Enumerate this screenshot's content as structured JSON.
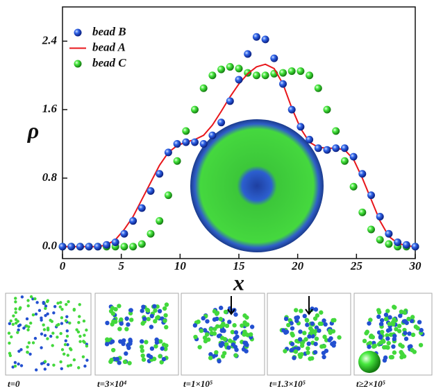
{
  "chart_data": {
    "type": "scatter",
    "x": [
      0,
      0.75,
      1.5,
      2.25,
      3,
      3.75,
      4.5,
      5.25,
      6,
      6.75,
      7.5,
      8.25,
      9,
      9.75,
      10.5,
      11.25,
      12,
      12.75,
      13.5,
      14.25,
      15,
      15.75,
      16.5,
      17.25,
      18,
      18.75,
      19.5,
      20.25,
      21,
      21.75,
      22.5,
      23.25,
      24,
      24.75,
      25.5,
      26.25,
      27,
      27.75,
      28.5,
      29.25,
      30
    ],
    "series": [
      {
        "name": "bead B",
        "color": "#1f4fd6",
        "style": "markers",
        "values": [
          0,
          0,
          0,
          0,
          0,
          0.02,
          0.05,
          0.15,
          0.3,
          0.45,
          0.65,
          0.85,
          1.1,
          1.2,
          1.22,
          1.22,
          1.2,
          1.3,
          1.45,
          1.7,
          1.95,
          2.25,
          2.45,
          2.42,
          2.2,
          1.9,
          1.6,
          1.4,
          1.25,
          1.15,
          1.13,
          1.15,
          1.15,
          1.05,
          0.85,
          0.6,
          0.35,
          0.15,
          0.05,
          0.02,
          0
        ]
      },
      {
        "name": "bead A",
        "color": "#e8161b",
        "style": "line",
        "values": [
          0,
          0,
          0,
          0,
          0,
          0.02,
          0.08,
          0.2,
          0.35,
          0.55,
          0.75,
          0.95,
          1.1,
          1.18,
          1.22,
          1.25,
          1.3,
          1.42,
          1.58,
          1.75,
          1.9,
          2.02,
          2.1,
          2.13,
          2.08,
          1.9,
          1.62,
          1.38,
          1.22,
          1.16,
          1.15,
          1.15,
          1.13,
          1.02,
          0.8,
          0.55,
          0.3,
          0.12,
          0.04,
          0.01,
          0
        ]
      },
      {
        "name": "bead C",
        "color": "#3fe23a",
        "style": "markers",
        "values": [
          0,
          0,
          0,
          0,
          0,
          0,
          0,
          0,
          0,
          0.03,
          0.15,
          0.3,
          0.6,
          1.0,
          1.35,
          1.6,
          1.85,
          2.0,
          2.07,
          2.1,
          2.08,
          2.03,
          2.0,
          2.0,
          2.02,
          2.03,
          2.05,
          2.05,
          2.0,
          1.85,
          1.6,
          1.35,
          1.0,
          0.7,
          0.4,
          0.2,
          0.08,
          0.03,
          0,
          0,
          0
        ]
      }
    ],
    "x_label": "x",
    "y_label": "ρ",
    "xlim": [
      0,
      30
    ],
    "ylim": [
      -0.14,
      2.8
    ],
    "xticks": [
      0,
      5,
      10,
      15,
      20,
      25,
      30
    ],
    "yticks": [
      {
        "value": 0,
        "label": "0.0"
      },
      0.8,
      1.6,
      2.4
    ],
    "legend": "upper-left"
  },
  "panels": [
    {
      "label": "t=0"
    },
    {
      "label": "t=3×10⁴"
    },
    {
      "label": "t=1×10⁵"
    },
    {
      "label": "t=1.3×10⁵"
    },
    {
      "label": "t≥2×10⁵"
    }
  ]
}
